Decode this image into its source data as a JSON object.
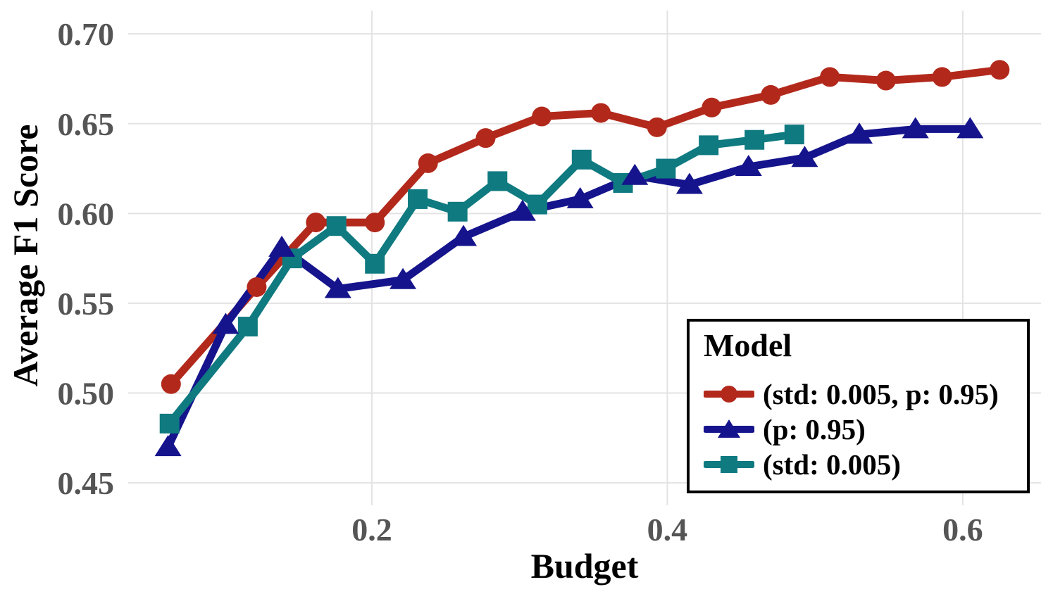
{
  "style": {
    "background": "#ffffff",
    "grid_color": "#e3e3e3",
    "tick_label_color": "#555555",
    "axis_title_color": "#000000",
    "legend_border_color": "#000000"
  },
  "axis_titles": {
    "x": "Budget",
    "y": "Average F1 Score"
  },
  "chart_data": {
    "type": "line",
    "title": "",
    "xlabel": "Budget",
    "ylabel": "Average F1 Score",
    "grid": true,
    "legend_title": "Model",
    "legend_position": "lower right",
    "xlim": [
      0.035,
      0.653
    ],
    "ylim": [
      0.4375,
      0.713
    ],
    "x_ticks": [
      {
        "value": 0.2,
        "label": "0.2"
      },
      {
        "value": 0.4,
        "label": "0.4"
      },
      {
        "value": 0.6,
        "label": "0.6"
      }
    ],
    "y_ticks": [
      {
        "value": 0.45,
        "label": "0.45"
      },
      {
        "value": 0.5,
        "label": "0.50"
      },
      {
        "value": 0.55,
        "label": "0.55"
      },
      {
        "value": 0.6,
        "label": "0.60"
      },
      {
        "value": 0.65,
        "label": "0.65"
      },
      {
        "value": 0.7,
        "label": "0.70"
      }
    ],
    "marker_draw_order": [
      0,
      2,
      1
    ],
    "series": [
      {
        "name": "(std: 0.005, p: 0.95)",
        "color": "#b2291c",
        "marker": "circle",
        "x": [
          0.064,
          0.122,
          0.162,
          0.202,
          0.238,
          0.277,
          0.315,
          0.355,
          0.393,
          0.43,
          0.47,
          0.51,
          0.548,
          0.586,
          0.625
        ],
        "y": [
          0.505,
          0.559,
          0.595,
          0.595,
          0.628,
          0.642,
          0.654,
          0.656,
          0.648,
          0.659,
          0.666,
          0.676,
          0.674,
          0.676,
          0.68
        ]
      },
      {
        "name": "(p: 0.95)",
        "color": "#15148c",
        "marker": "triangle-up",
        "x": [
          0.062,
          0.101,
          0.139,
          0.177,
          0.221,
          0.262,
          0.302,
          0.341,
          0.378,
          0.415,
          0.455,
          0.493,
          0.53,
          0.568,
          0.605
        ],
        "y": [
          0.47,
          0.538,
          0.581,
          0.558,
          0.563,
          0.587,
          0.601,
          0.608,
          0.621,
          0.616,
          0.626,
          0.631,
          0.644,
          0.647,
          0.647
        ]
      },
      {
        "name": "(std: 0.005)",
        "color": "#0f7a80",
        "marker": "square",
        "x": [
          0.063,
          0.116,
          0.146,
          0.176,
          0.202,
          0.231,
          0.258,
          0.285,
          0.312,
          0.342,
          0.37,
          0.399,
          0.428,
          0.459,
          0.486
        ],
        "y": [
          0.483,
          0.537,
          0.575,
          0.593,
          0.572,
          0.608,
          0.601,
          0.618,
          0.605,
          0.63,
          0.617,
          0.625,
          0.638,
          0.641,
          0.644
        ]
      }
    ]
  }
}
